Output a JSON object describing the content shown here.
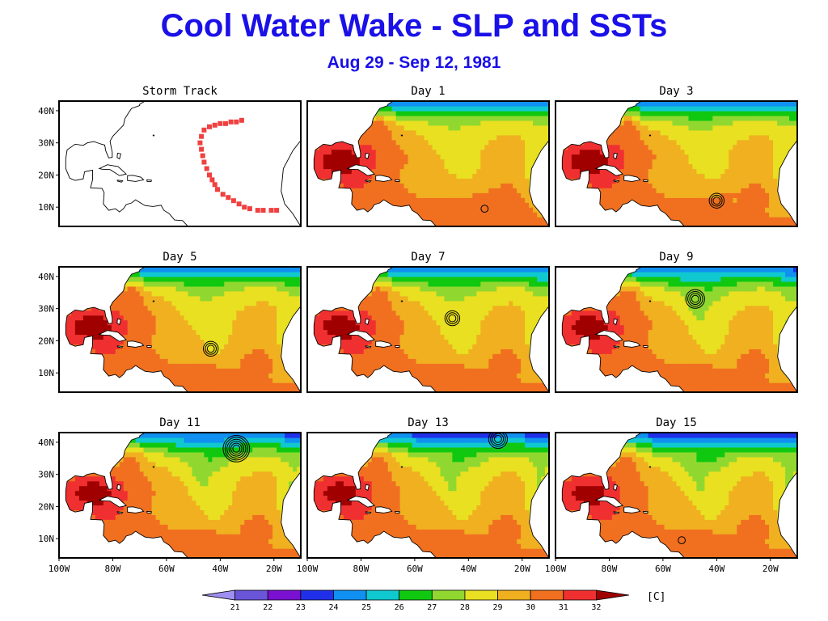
{
  "title": "Cool Water Wake - SLP and SSTs",
  "subtitle": "Aug 29 - Sep 12, 1981",
  "panels": [
    {
      "label": "Storm Track",
      "kind": "track"
    },
    {
      "label": "Day 1",
      "kind": "sst",
      "storm": {
        "lon": -34,
        "lat": 9.5,
        "rings": 1
      }
    },
    {
      "label": "Day 3",
      "kind": "sst",
      "storm": {
        "lon": -40,
        "lat": 12,
        "rings": 3
      }
    },
    {
      "label": "Day 5",
      "kind": "sst",
      "storm": {
        "lon": -43.5,
        "lat": 17.5,
        "rings": 3
      }
    },
    {
      "label": "Day 7",
      "kind": "sst",
      "storm": {
        "lon": -46,
        "lat": 27,
        "rings": 3
      }
    },
    {
      "label": "Day 9",
      "kind": "sst",
      "storm": {
        "lon": -48,
        "lat": 33,
        "rings": 4
      }
    },
    {
      "label": "Day 11",
      "kind": "sst",
      "storm": {
        "lon": -34,
        "lat": 38,
        "rings": 6
      }
    },
    {
      "label": "Day 13",
      "kind": "sst",
      "storm": {
        "lon": -29,
        "lat": 41,
        "rings": 4
      }
    },
    {
      "label": "Day 15",
      "kind": "sst",
      "storm": {
        "lon": -53,
        "lat": 9.5,
        "rings": 1
      }
    }
  ],
  "storm_track": [
    [
      -32,
      37
    ],
    [
      -34,
      36.5
    ],
    [
      -36,
      36.5
    ],
    [
      -38,
      36
    ],
    [
      -40,
      36
    ],
    [
      -42,
      35.5
    ],
    [
      -44,
      35
    ],
    [
      -46,
      34
    ],
    [
      -47,
      32
    ],
    [
      -47.5,
      30
    ],
    [
      -47,
      28
    ],
    [
      -46.5,
      26
    ],
    [
      -46,
      24
    ],
    [
      -45,
      22
    ],
    [
      -44,
      20
    ],
    [
      -43,
      18.5
    ],
    [
      -42,
      17
    ],
    [
      -41,
      15.5
    ],
    [
      -39,
      14
    ],
    [
      -37,
      13
    ],
    [
      -35,
      12
    ],
    [
      -33,
      11
    ],
    [
      -31,
      10
    ],
    [
      -29,
      9.5
    ],
    [
      -26,
      9
    ],
    [
      -24,
      9
    ],
    [
      -21,
      9
    ],
    [
      -19,
      9
    ]
  ],
  "axes": {
    "lat_labels": [
      "40N",
      "30N",
      "20N",
      "10N"
    ],
    "lat_values": [
      40,
      30,
      20,
      10
    ],
    "lon_labels": [
      "100W",
      "80W",
      "60W",
      "40W",
      "20W"
    ],
    "lon_values": [
      -100,
      -80,
      -60,
      -40,
      -20
    ],
    "lon_range": [
      -100,
      -10
    ],
    "lat_range": [
      4,
      43
    ]
  },
  "colorbar": {
    "ticks": [
      "21",
      "22",
      "23",
      "24",
      "25",
      "26",
      "27",
      "28",
      "29",
      "30",
      "31",
      "32"
    ],
    "colors": [
      "#9f8ff0",
      "#6a55d8",
      "#7a10d0",
      "#2030e8",
      "#1090f0",
      "#10c8d0",
      "#10c810",
      "#90d830",
      "#e8e020",
      "#f0b020",
      "#f07020",
      "#f03030",
      "#a00000"
    ],
    "unit": "[C]"
  }
}
